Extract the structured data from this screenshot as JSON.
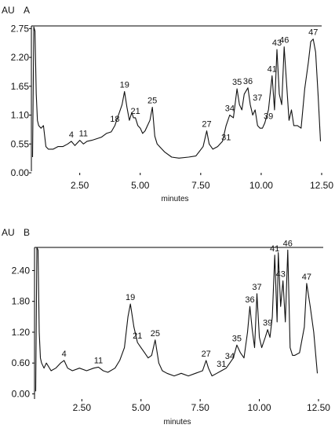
{
  "chart_data": [
    {
      "type": "line",
      "panel_label": "A",
      "ylabel": "AU",
      "xlabel": "minutes",
      "xlim": [
        0.5,
        12.5
      ],
      "ylim": [
        0,
        2.8
      ],
      "x_ticks": [
        "2.50",
        "5.00",
        "7.50",
        "10.00",
        "12.50"
      ],
      "y_ticks": [
        "0.00",
        "0.55",
        "1.10",
        "1.65",
        "2.20",
        "2.75"
      ],
      "x_tick_values": [
        2.5,
        5.0,
        7.5,
        10.0,
        12.5
      ],
      "y_tick_values": [
        0.0,
        0.55,
        1.1,
        1.65,
        2.2,
        2.75
      ],
      "series": [
        {
          "x": [
            0.55,
            0.6,
            0.65,
            0.7,
            0.75,
            0.8,
            0.9,
            1.0,
            1.1,
            1.2,
            1.4,
            1.6,
            1.8,
            2.0,
            2.15,
            2.3,
            2.5,
            2.65,
            2.8,
            3.0,
            3.2,
            3.4,
            3.6,
            3.8,
            3.95,
            4.1,
            4.25,
            4.35,
            4.45,
            4.55,
            4.65,
            4.72,
            4.8,
            4.9,
            5.0,
            5.1,
            5.2,
            5.3,
            5.4,
            5.5,
            5.6,
            5.7,
            5.8,
            6.0,
            6.3,
            6.6,
            7.0,
            7.3,
            7.6,
            7.75,
            7.85,
            8.0,
            8.2,
            8.4,
            8.55,
            8.7,
            8.85,
            9.0,
            9.1,
            9.2,
            9.3,
            9.45,
            9.55,
            9.65,
            9.75,
            9.85,
            9.95,
            10.05,
            10.15,
            10.3,
            10.45,
            10.55,
            10.65,
            10.75,
            10.85,
            10.95,
            11.05,
            11.15,
            11.25,
            11.35,
            11.5,
            11.65,
            11.8,
            11.95,
            12.05,
            12.15,
            12.25,
            12.35,
            12.45
          ],
          "y": [
            0.3,
            2.78,
            2.7,
            1.5,
            1.0,
            0.9,
            0.85,
            0.9,
            0.5,
            0.45,
            0.45,
            0.5,
            0.5,
            0.55,
            0.6,
            0.52,
            0.62,
            0.55,
            0.6,
            0.62,
            0.65,
            0.68,
            0.75,
            0.78,
            0.9,
            1.1,
            1.3,
            1.55,
            1.25,
            1.0,
            1.15,
            1.05,
            1.05,
            0.9,
            0.85,
            0.75,
            0.8,
            0.9,
            1.0,
            1.25,
            0.7,
            0.55,
            0.5,
            0.4,
            0.3,
            0.28,
            0.3,
            0.32,
            0.5,
            0.8,
            0.55,
            0.45,
            0.5,
            0.6,
            0.9,
            1.1,
            1.05,
            1.6,
            1.3,
            1.2,
            1.5,
            1.62,
            1.3,
            1.1,
            1.2,
            0.9,
            0.85,
            0.85,
            0.95,
            1.2,
            1.85,
            1.2,
            2.35,
            1.5,
            1.3,
            2.4,
            1.7,
            1.0,
            1.2,
            0.9,
            0.9,
            0.85,
            1.6,
            2.1,
            2.5,
            2.55,
            2.3,
            1.5,
            0.6
          ]
        }
      ],
      "peak_labels": [
        {
          "text": "4",
          "x": 2.15,
          "y": 0.6
        },
        {
          "text": "11",
          "x": 2.65,
          "y": 0.62
        },
        {
          "text": "18",
          "x": 3.95,
          "y": 0.9
        },
        {
          "text": "19",
          "x": 4.35,
          "y": 1.55
        },
        {
          "text": "21",
          "x": 4.8,
          "y": 1.05
        },
        {
          "text": "25",
          "x": 5.5,
          "y": 1.25
        },
        {
          "text": "27",
          "x": 7.75,
          "y": 0.8
        },
        {
          "text": "31",
          "x": 8.55,
          "y": 0.55
        },
        {
          "text": "34",
          "x": 8.7,
          "y": 1.1
        },
        {
          "text": "35",
          "x": 9.0,
          "y": 1.6
        },
        {
          "text": "36",
          "x": 9.45,
          "y": 1.62
        },
        {
          "text": "37",
          "x": 9.85,
          "y": 1.3
        },
        {
          "text": "39",
          "x": 10.3,
          "y": 0.95
        },
        {
          "text": "41",
          "x": 10.45,
          "y": 1.85
        },
        {
          "text": "43",
          "x": 10.65,
          "y": 2.35
        },
        {
          "text": "46",
          "x": 10.95,
          "y": 2.4
        },
        {
          "text": "47",
          "x": 12.15,
          "y": 2.55
        }
      ]
    },
    {
      "type": "line",
      "panel_label": "B",
      "ylabel": "AU",
      "xlabel": "minutes",
      "xlim": [
        0.5,
        12.7
      ],
      "ylim": [
        -0.1,
        2.85
      ],
      "x_ticks": [
        "2.50",
        "5.00",
        "7.50",
        "10.00",
        "12.50"
      ],
      "y_ticks": [
        "0.00",
        "0.60",
        "1.20",
        "1.80",
        "2.40"
      ],
      "x_tick_values": [
        2.5,
        5.0,
        7.5,
        10.0,
        12.5
      ],
      "y_tick_values": [
        0.0,
        0.6,
        1.2,
        1.8,
        2.4
      ],
      "series": [
        {
          "x": [
            0.55,
            0.6,
            0.65,
            0.7,
            0.75,
            0.8,
            0.9,
            1.0,
            1.2,
            1.4,
            1.6,
            1.75,
            1.9,
            2.1,
            2.4,
            2.7,
            3.0,
            3.2,
            3.4,
            3.6,
            3.9,
            4.1,
            4.3,
            4.45,
            4.55,
            4.7,
            4.85,
            5.0,
            5.15,
            5.3,
            5.45,
            5.6,
            5.75,
            5.9,
            6.1,
            6.4,
            6.7,
            7.0,
            7.3,
            7.6,
            7.75,
            7.85,
            8.0,
            8.2,
            8.4,
            8.6,
            8.75,
            8.9,
            9.05,
            9.2,
            9.35,
            9.5,
            9.6,
            9.7,
            9.8,
            9.9,
            10.0,
            10.1,
            10.25,
            10.35,
            10.45,
            10.55,
            10.65,
            10.75,
            10.8,
            10.9,
            11.0,
            11.1,
            11.2,
            11.3,
            11.4,
            11.5,
            11.7,
            11.9,
            12.0,
            12.15,
            12.3,
            12.45
          ],
          "y": [
            0.05,
            2.85,
            2.8,
            1.2,
            0.7,
            0.6,
            0.5,
            0.6,
            0.45,
            0.5,
            0.6,
            0.65,
            0.5,
            0.45,
            0.5,
            0.45,
            0.5,
            0.52,
            0.45,
            0.42,
            0.5,
            0.65,
            0.9,
            1.5,
            1.75,
            1.3,
            1.0,
            0.9,
            0.8,
            0.7,
            0.75,
            1.05,
            0.6,
            0.45,
            0.4,
            0.35,
            0.4,
            0.35,
            0.4,
            0.45,
            0.65,
            0.5,
            0.35,
            0.4,
            0.45,
            0.5,
            0.6,
            0.7,
            0.95,
            0.8,
            0.7,
            1.2,
            1.7,
            1.25,
            0.9,
            1.95,
            1.1,
            0.9,
            1.1,
            1.25,
            1.1,
            1.5,
            2.7,
            1.4,
            2.75,
            1.7,
            2.2,
            1.4,
            2.8,
            0.9,
            0.75,
            0.75,
            0.8,
            1.3,
            2.15,
            1.7,
            1.2,
            0.4
          ]
        }
      ],
      "peak_labels": [
        {
          "text": "4",
          "x": 1.75,
          "y": 0.65
        },
        {
          "text": "11",
          "x": 3.2,
          "y": 0.52
        },
        {
          "text": "19",
          "x": 4.55,
          "y": 1.75
        },
        {
          "text": "21",
          "x": 4.85,
          "y": 1.0
        },
        {
          "text": "25",
          "x": 5.6,
          "y": 1.05
        },
        {
          "text": "27",
          "x": 7.75,
          "y": 0.65
        },
        {
          "text": "31",
          "x": 8.4,
          "y": 0.45
        },
        {
          "text": "34",
          "x": 8.75,
          "y": 0.6
        },
        {
          "text": "35",
          "x": 9.05,
          "y": 0.95
        },
        {
          "text": "36",
          "x": 9.6,
          "y": 1.7
        },
        {
          "text": "37",
          "x": 9.9,
          "y": 1.95
        },
        {
          "text": "39",
          "x": 10.35,
          "y": 1.25
        },
        {
          "text": "41",
          "x": 10.65,
          "y": 2.7
        },
        {
          "text": "43",
          "x": 10.9,
          "y": 2.2
        },
        {
          "text": "46",
          "x": 11.2,
          "y": 2.8
        },
        {
          "text": "47",
          "x": 12.0,
          "y": 2.15
        }
      ]
    }
  ]
}
